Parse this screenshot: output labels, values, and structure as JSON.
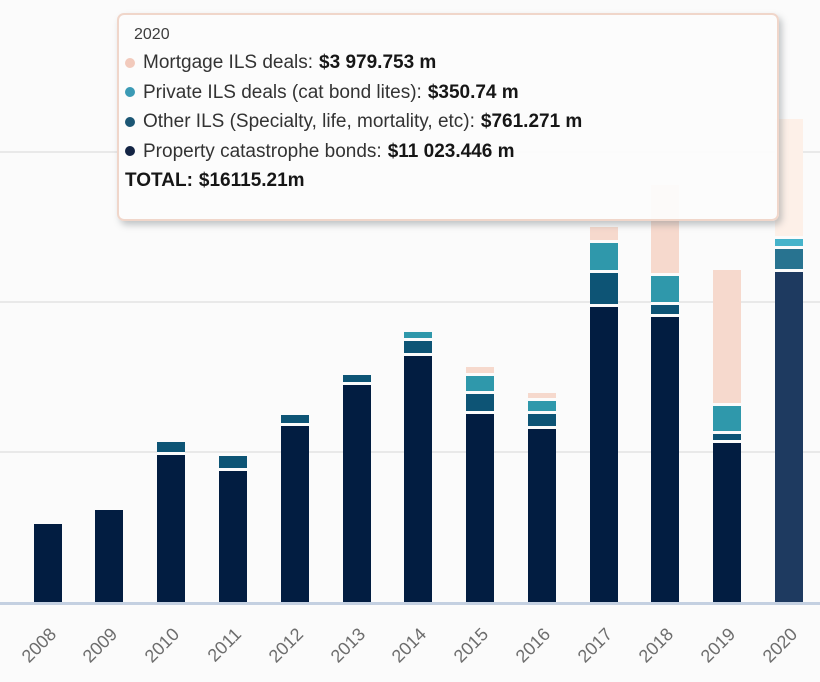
{
  "tooltip": {
    "year": "2020",
    "items": [
      {
        "key": "mortgage",
        "label": "Mortgage ILS deals:",
        "value": "$3 979.753 m",
        "dot_color": "#f2cabc"
      },
      {
        "key": "private",
        "label": "Private ILS deals (cat bond lites):",
        "value": "$350.74 m",
        "dot_color": "#3b9ab5"
      },
      {
        "key": "other",
        "label": "Other ILS (Specialty, life, mortality, etc):",
        "value": "$761.271 m",
        "dot_color": "#1b5674"
      },
      {
        "key": "property",
        "label": "Property catastrophe bonds:",
        "value": "$11 023.446 m",
        "dot_color": "#132444"
      }
    ],
    "total_label": "TOTAL:",
    "total_value": "$16115.21m"
  },
  "chart_data": {
    "type": "bar",
    "stacked": true,
    "title": "",
    "xlabel": "",
    "ylabel": "",
    "unit": "$m",
    "categories": [
      2008,
      2009,
      2010,
      2011,
      2012,
      2013,
      2014,
      2015,
      2016,
      2017,
      2018,
      2019,
      2020
    ],
    "series": [
      {
        "key": "property",
        "name": "Property catastrophe bonds",
        "color": "#021d41",
        "hover_color": "#1e3a60",
        "values": [
          2620,
          3100,
          4940,
          4400,
          5880,
          7270,
          8230,
          6290,
          5790,
          9870,
          9510,
          5315,
          11023.446
        ]
      },
      {
        "key": "other",
        "name": "Other ILS (Specialty, life, mortality, etc)",
        "color": "#0d5475",
        "hover_color": "#287390",
        "values": [
          0,
          0,
          410,
          500,
          380,
          330,
          480,
          670,
          500,
          1130,
          415,
          300,
          761.271
        ]
      },
      {
        "key": "private",
        "name": "Private ILS deals (cat bond lites)",
        "color": "#2f98ab",
        "hover_color": "#46b3ca",
        "values": [
          0,
          0,
          0,
          0,
          0,
          0,
          330,
          600,
          450,
          1000,
          980,
          945,
          350.74
        ]
      },
      {
        "key": "mortgage",
        "name": "Mortgage ILS deals",
        "color": "#f6d9cd",
        "hover_color": "#fdf0e8",
        "values": [
          0,
          0,
          0,
          0,
          0,
          0,
          0,
          300,
          250,
          520,
          3015,
          4530,
          3979.753
        ]
      }
    ],
    "totals": [
      2620,
      3100,
      5350,
      4900,
      6260,
      7600,
      9040,
      7860,
      6990,
      12520,
      13920,
      11090,
      16115.21
    ],
    "hover_category": 2020,
    "ylim": [
      0,
      20000
    ],
    "gridline_values": [
      5000,
      10000,
      15000
    ],
    "grid": true,
    "legend_position": "tooltip",
    "y_axis_labels": []
  },
  "axis": {
    "x_labels": [
      "2008",
      "2009",
      "2010",
      "2011",
      "2012",
      "2013",
      "2014",
      "2015",
      "2016",
      "2017",
      "2018",
      "2019",
      "2020"
    ]
  },
  "colors": {
    "background": "#fbfbfb",
    "axis_line": "#c4d0e1",
    "gridline": "#e9e9e9",
    "tooltip_border": "#f0d6ca",
    "x_label_text": "#6d6d6d"
  }
}
